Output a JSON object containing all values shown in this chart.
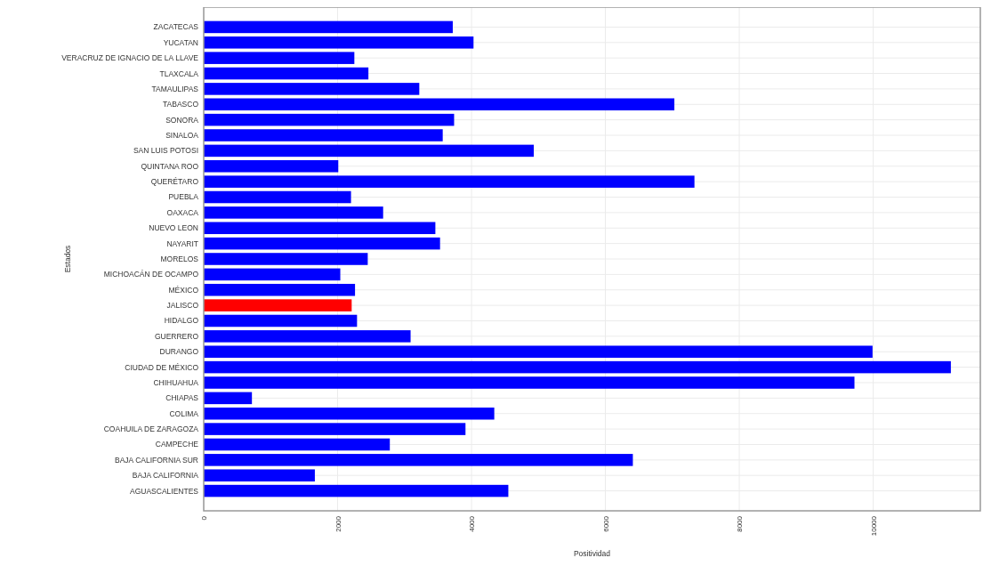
{
  "chart_data": {
    "type": "bar",
    "orientation": "horizontal",
    "xlabel": "Positividad",
    "ylabel": "Estados",
    "categories": [
      "ZACATECAS",
      "YUCATAN",
      "VERACRUZ DE IGNACIO DE LA LLAVE",
      "TLAXCALA",
      "TAMAULIPAS",
      "TABASCO",
      "SONORA",
      "SINALOA",
      "SAN LUIS POTOSI",
      "QUINTANA ROO",
      "QUERÉTARO",
      "PUEBLA",
      "OAXACA",
      "NUEVO LEON",
      "NAYARIT",
      "MORELOS",
      "MICHOACÁN DE OCAMPO",
      "MÉXICO",
      "JALISCO",
      "HIDALGO",
      "GUERRERO",
      "DURANGO",
      "CIUDAD DE MÉXICO",
      "CHIHUAHUA",
      "CHIAPAS",
      "COLIMA",
      "COAHUILA DE ZARAGOZA",
      "CAMPECHE",
      "BAJA CALIFORNIA SUR",
      "BAJA CALIFORNIA",
      "AGUASCALIENTES"
    ],
    "values": [
      3720,
      4030,
      2250,
      2460,
      3220,
      7030,
      3740,
      3570,
      4930,
      2010,
      7330,
      2200,
      2680,
      3460,
      3530,
      2450,
      2040,
      2260,
      2210,
      2290,
      3090,
      9990,
      11160,
      9720,
      720,
      4340,
      3910,
      2780,
      6410,
      1660,
      4550
    ],
    "colors": [
      "#0000ff",
      "#0000ff",
      "#0000ff",
      "#0000ff",
      "#0000ff",
      "#0000ff",
      "#0000ff",
      "#0000ff",
      "#0000ff",
      "#0000ff",
      "#0000ff",
      "#0000ff",
      "#0000ff",
      "#0000ff",
      "#0000ff",
      "#0000ff",
      "#0000ff",
      "#0000ff",
      "#ff0000",
      "#0000ff",
      "#0000ff",
      "#0000ff",
      "#0000ff",
      "#0000ff",
      "#0000ff",
      "#0000ff",
      "#0000ff",
      "#0000ff",
      "#0000ff",
      "#0000ff",
      "#0000ff"
    ],
    "xlim": [
      0,
      11600
    ],
    "xticks": [
      0,
      2000,
      4000,
      6000,
      8000,
      10000
    ],
    "grid": true
  }
}
